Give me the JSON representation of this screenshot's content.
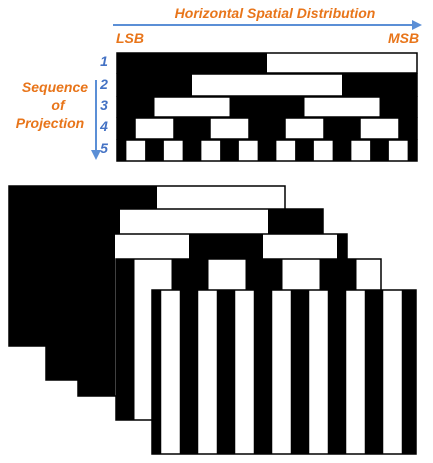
{
  "axis_title": "Horizontal Spatial Distribution",
  "lsb_label": "LSB",
  "msb_label": "MSB",
  "sequence_label_lines": [
    "Sequence",
    "of",
    "Projection"
  ],
  "row_numbers": [
    "1",
    "2",
    "3",
    "4",
    "5"
  ],
  "colors": {
    "label_orange": "#E8751A",
    "arrow_blue": "#5B8FD6",
    "number_blue": "#4472C4",
    "black": "#000000",
    "white": "#ffffff"
  }
}
